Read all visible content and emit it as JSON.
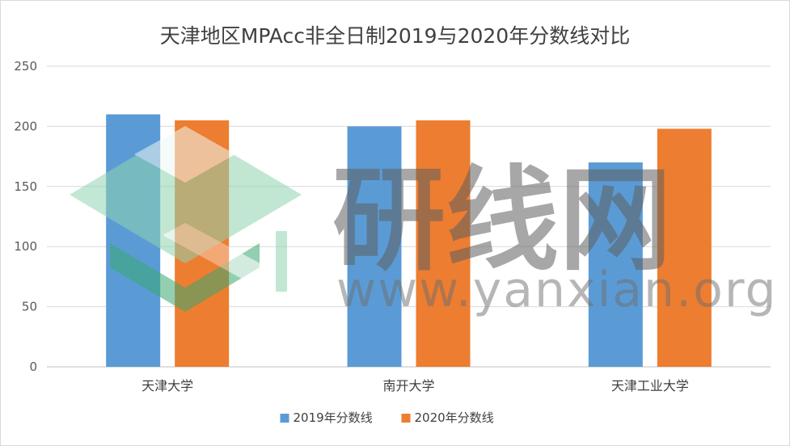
{
  "chart_data": {
    "type": "bar",
    "title": "天津地区MPAcc非全日制2019与2020年分数线对比",
    "categories": [
      "天津大学",
      "南开大学",
      "天津工业大学"
    ],
    "series": [
      {
        "name": "2019年分数线",
        "values": [
          210,
          200,
          170
        ]
      },
      {
        "name": "2020年分数线",
        "values": [
          205,
          205,
          198
        ]
      }
    ],
    "ylim": [
      0,
      250
    ],
    "yticks": [
      0,
      50,
      100,
      150,
      200,
      250
    ],
    "grid": true,
    "legend": "bottom",
    "colors": [
      "#5B9BD5",
      "#ED7D31"
    ]
  },
  "watermark": {
    "text": "研线网",
    "url": "www.yanxian.org",
    "logo_colors": [
      "#8fd4b0",
      "#3aa870"
    ]
  }
}
